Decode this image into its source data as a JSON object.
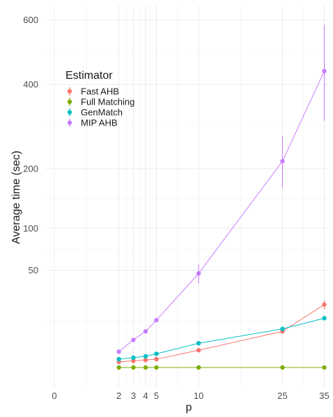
{
  "chart_data": {
    "type": "line",
    "xlabel": "p",
    "ylabel": "Average time (sec)",
    "x_ticks": [
      0,
      2,
      3,
      4,
      5,
      10,
      25,
      35
    ],
    "y_ticks": [
      50,
      100,
      200,
      400,
      600
    ],
    "x_scale": "sqrt",
    "y_scale": "sqrt",
    "xlim": [
      0,
      35
    ],
    "ylim": [
      0,
      600
    ],
    "grid": true,
    "legend": {
      "title": "Estimator",
      "position": "top-left"
    },
    "series": [
      {
        "name": "Fast AHB",
        "color": "#F8766D",
        "x": [
          2,
          3,
          4,
          5,
          10,
          25,
          35
        ],
        "y": [
          0.5,
          0.6,
          0.7,
          0.8,
          2.3,
          8,
          22
        ],
        "err_low": [
          null,
          null,
          null,
          null,
          null,
          null,
          19
        ],
        "err_high": [
          null,
          null,
          null,
          null,
          null,
          null,
          25
        ]
      },
      {
        "name": "Full Matching",
        "color": "#7CAE00",
        "x": [
          2,
          3,
          4,
          5,
          10,
          25,
          35
        ],
        "y": [
          0.1,
          0.1,
          0.1,
          0.1,
          0.1,
          0.1,
          0.1
        ],
        "err_low": [
          null,
          null,
          null,
          null,
          null,
          null,
          null
        ],
        "err_high": [
          null,
          null,
          null,
          null,
          null,
          null,
          null
        ]
      },
      {
        "name": "GenMatch",
        "color": "#00BFC4",
        "x": [
          2,
          3,
          4,
          5,
          10,
          25,
          35
        ],
        "y": [
          0.8,
          1.0,
          1.2,
          1.6,
          4,
          9,
          14
        ],
        "err_low": [
          null,
          null,
          null,
          null,
          null,
          null,
          null
        ],
        "err_high": [
          null,
          null,
          null,
          null,
          null,
          null,
          null
        ]
      },
      {
        "name": "MIP AHB",
        "color": "#C77CFF",
        "x": [
          2,
          3,
          4,
          5,
          10,
          25,
          35
        ],
        "y": [
          2,
          5,
          8,
          13,
          47,
          215,
          438
        ],
        "err_low": [
          null,
          null,
          null,
          null,
          38,
          165,
          305
        ],
        "err_high": [
          null,
          null,
          null,
          null,
          56,
          270,
          583
        ]
      }
    ]
  }
}
